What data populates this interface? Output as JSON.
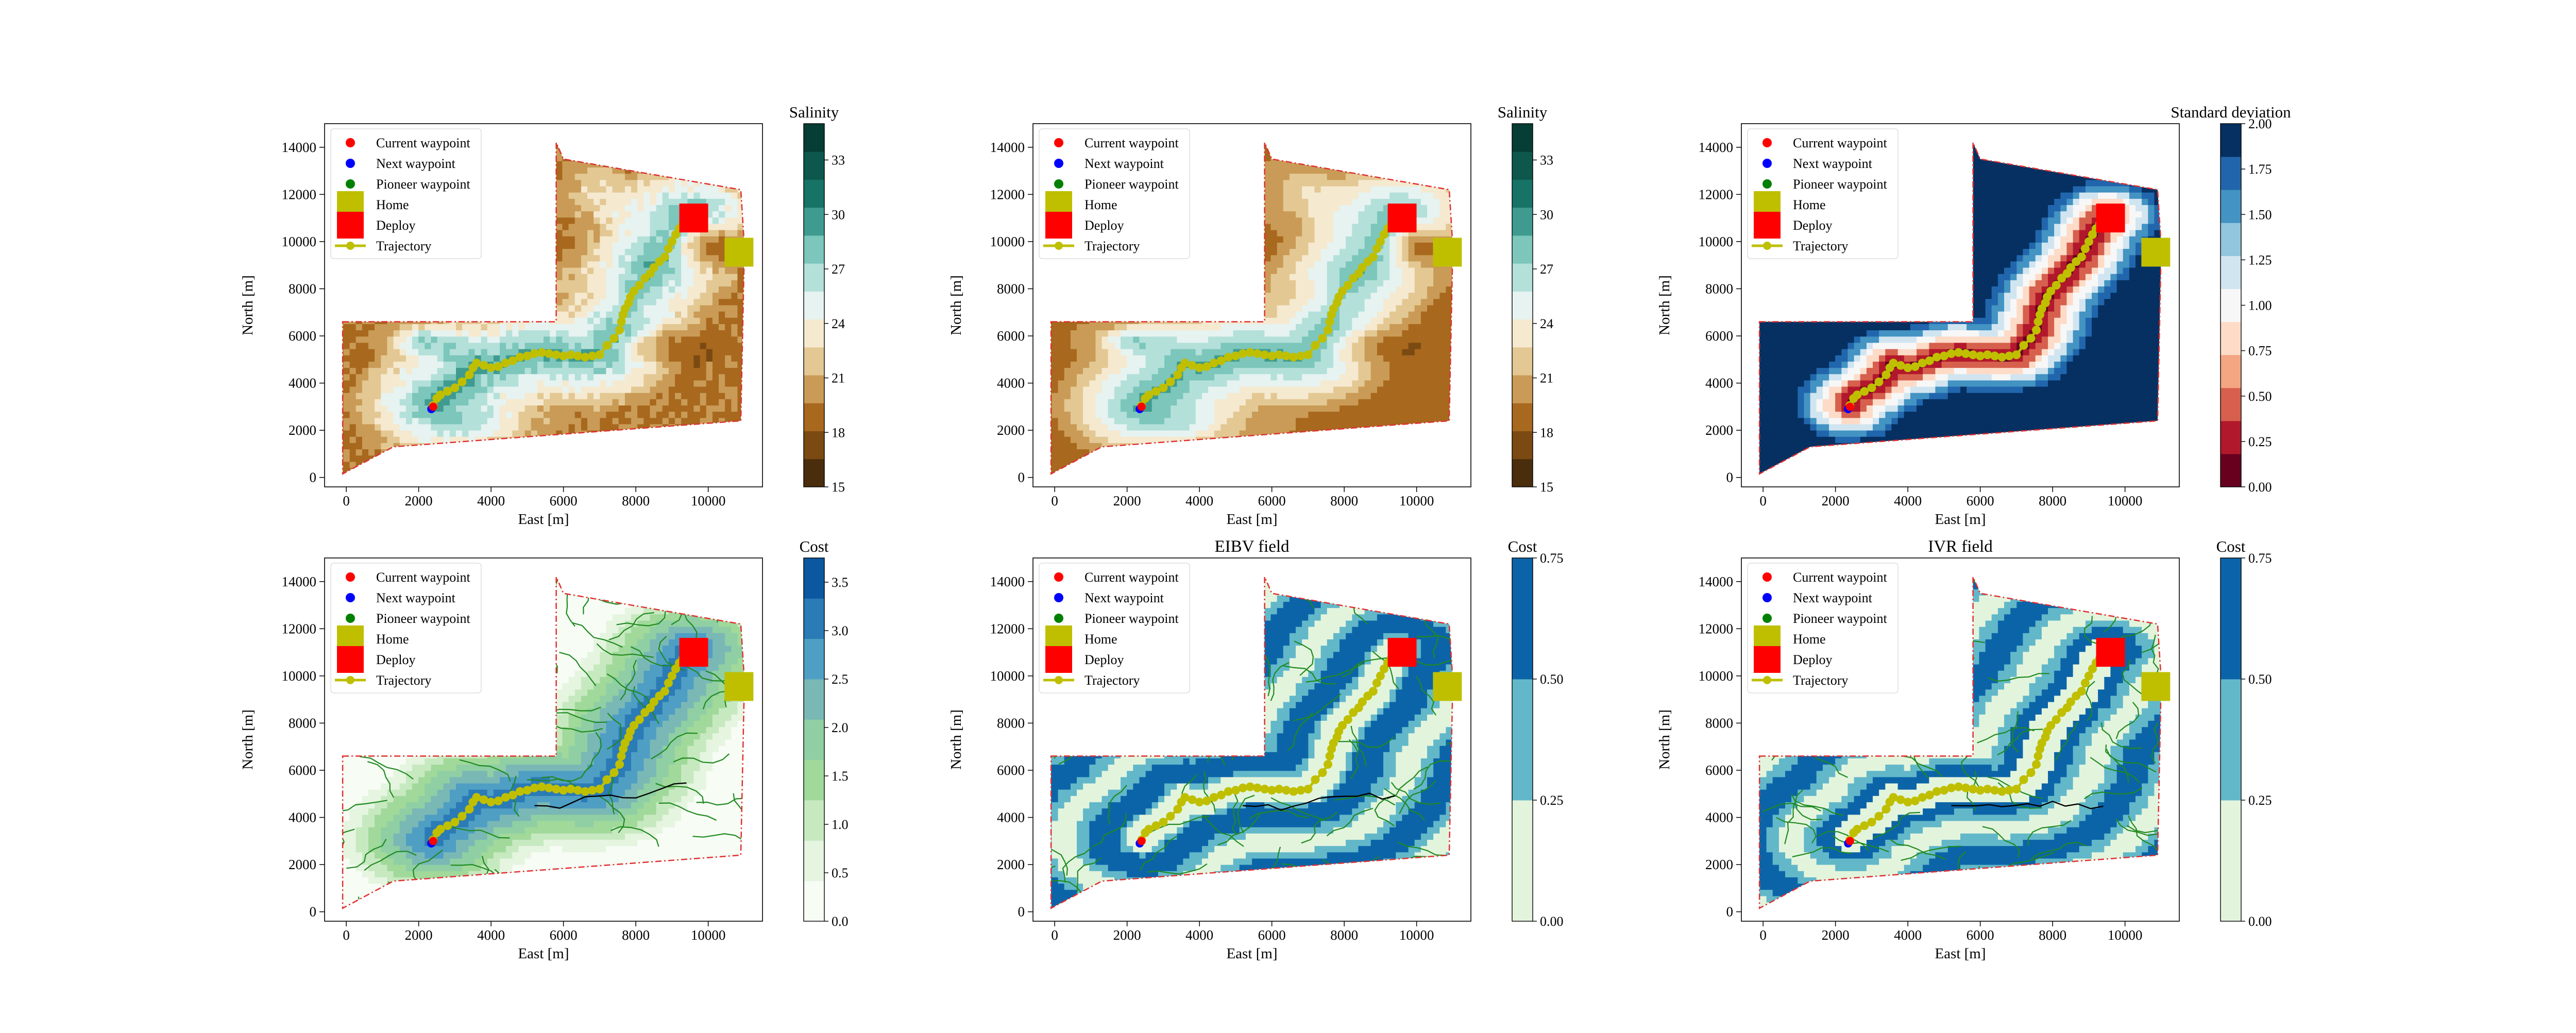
{
  "figure": {
    "background": "#ffffff"
  },
  "common": {
    "xlabel": "East [m]",
    "ylabel": "North [m]",
    "x_ticks": [
      0,
      2000,
      4000,
      6000,
      8000,
      10000
    ],
    "y_ticks": [
      0,
      2000,
      4000,
      6000,
      8000,
      10000,
      12000,
      14000
    ],
    "xlim": [
      -600,
      11500
    ],
    "ylim": [
      -400,
      15000
    ],
    "legend": [
      {
        "label": "Current waypoint",
        "marker": "dot",
        "color": "#ff0000"
      },
      {
        "label": "Next waypoint",
        "marker": "dot",
        "color": "#0000ff"
      },
      {
        "label": "Pioneer waypoint",
        "marker": "dot",
        "color": "#008000"
      },
      {
        "label": "Home",
        "marker": "square",
        "color": "#bfbf00"
      },
      {
        "label": "Deploy",
        "marker": "square",
        "color": "#ff0000"
      },
      {
        "label": "Trajectory",
        "marker": "line-dot",
        "color": "#bfbf00"
      }
    ],
    "legend_location": "upper-left",
    "boundary_color": "#e03030"
  },
  "chart_data": [
    {
      "type": "heatmap",
      "id": "salinity-observed",
      "title": "",
      "colorbar_label": "Salinity",
      "colorbar_ticks": [
        "15",
        "18",
        "21",
        "24",
        "27",
        "30",
        "33"
      ],
      "colorbar_range": [
        15,
        35
      ],
      "colormap": [
        "#4a2d0c",
        "#7b4a12",
        "#a8681e",
        "#c99b56",
        "#e3c893",
        "#f5e9d0",
        "#e6f3f1",
        "#b4e0da",
        "#7cc6bb",
        "#3f9b8f",
        "#167366",
        "#0d574c",
        "#063d34"
      ],
      "cost_overlay": false,
      "stdev_map": false
    },
    {
      "type": "heatmap",
      "id": "salinity-estimated",
      "title": "",
      "colorbar_label": "Salinity",
      "colorbar_ticks": [
        "15",
        "18",
        "21",
        "24",
        "27",
        "30",
        "33"
      ],
      "colorbar_range": [
        15,
        35
      ],
      "colormap": [
        "#4a2d0c",
        "#7b4a12",
        "#a8681e",
        "#c99b56",
        "#e3c893",
        "#f5e9d0",
        "#e6f3f1",
        "#b4e0da",
        "#7cc6bb",
        "#3f9b8f",
        "#167366",
        "#0d574c",
        "#063d34"
      ],
      "cost_overlay": false,
      "stdev_map": false
    },
    {
      "type": "heatmap",
      "id": "standard-deviation",
      "title": "",
      "colorbar_label": "Standard deviation",
      "colorbar_ticks": [
        "0.00",
        "0.25",
        "0.50",
        "0.75",
        "1.00",
        "1.25",
        "1.50",
        "1.75",
        "2.00"
      ],
      "colorbar_range": [
        0,
        2
      ],
      "colormap": [
        "#67001f",
        "#b2182b",
        "#d6604d",
        "#f4a582",
        "#fddbc7",
        "#f7f7f7",
        "#d1e5f0",
        "#92c5de",
        "#4393c3",
        "#2166ac",
        "#053061"
      ],
      "cost_overlay": false,
      "stdev_map": true
    },
    {
      "type": "heatmap",
      "id": "cost-total",
      "title": "",
      "colorbar_label": "Cost",
      "colorbar_ticks": [
        "0.0",
        "0.5",
        "1.0",
        "1.5",
        "2.0",
        "2.5",
        "3.0",
        "3.5"
      ],
      "colorbar_range": [
        0,
        3.75
      ],
      "colormap": [
        "#f7fcf5",
        "#e5f5e0",
        "#c7e9c0",
        "#a1d99b",
        "#8fcfa3",
        "#7ab8b6",
        "#4f9ec4",
        "#2b7bb6",
        "#0b57a0"
      ],
      "cost_overlay": true,
      "stdev_map": false
    },
    {
      "type": "heatmap",
      "id": "eibv-field",
      "title": "EIBV field",
      "colorbar_label": "Cost",
      "colorbar_ticks": [
        "0.00",
        "0.25",
        "0.50",
        "0.75"
      ],
      "colorbar_range": [
        0,
        0.75
      ],
      "colormap": [
        "#e3f4dd",
        "#62b8c9",
        "#0c64a8"
      ],
      "cost_overlay": true,
      "stdev_map": false
    },
    {
      "type": "heatmap",
      "id": "ivr-field",
      "title": "IVR field",
      "colorbar_label": "Cost",
      "colorbar_ticks": [
        "0.00",
        "0.25",
        "0.50",
        "0.75"
      ],
      "colorbar_range": [
        0,
        0.75
      ],
      "colormap": [
        "#e3f4dd",
        "#62b8c9",
        "#0c64a8"
      ],
      "cost_overlay": true,
      "stdev_map": false
    }
  ],
  "trajectory": {
    "x": [
      2400,
      2500,
      2600,
      2800,
      3000,
      3200,
      3400,
      3500,
      3600,
      3800,
      4000,
      4200,
      4400,
      4600,
      4800,
      5000,
      5200,
      5400,
      5600,
      5800,
      6000,
      6200,
      6400,
      6600,
      6800,
      7000,
      7200,
      7400,
      7550,
      7600,
      7650,
      7700,
      7800,
      7850,
      7950,
      8100,
      8250,
      8400,
      8500,
      8650,
      8800,
      8900,
      9000,
      9100,
      9200,
      9300,
      9400,
      9500
    ],
    "y": [
      3050,
      3350,
      3500,
      3650,
      3800,
      4050,
      4350,
      4650,
      4850,
      4750,
      4650,
      4700,
      4850,
      4950,
      5100,
      5150,
      5250,
      5300,
      5250,
      5200,
      5150,
      5200,
      5150,
      5100,
      5150,
      5200,
      5600,
      5900,
      6250,
      6600,
      6900,
      7150,
      7400,
      7650,
      7900,
      8150,
      8450,
      8650,
      8900,
      9150,
      9350,
      9700,
      10000,
      10300,
      10550,
      10750,
      10950,
      11100
    ]
  },
  "markers": {
    "current": {
      "x": 2400,
      "y": 3000
    },
    "next": {
      "x": 2350,
      "y": 2900
    },
    "home": {
      "x": 10850,
      "y": 9550
    },
    "deploy": {
      "x": 9600,
      "y": 11000
    }
  },
  "boundary": {
    "x": [
      -100,
      5800,
      5800,
      6000,
      10900,
      11000,
      10900,
      1300,
      -100
    ],
    "y": [
      6600,
      6600,
      14200,
      13500,
      12200,
      9800,
      2400,
      1300,
      150
    ]
  }
}
